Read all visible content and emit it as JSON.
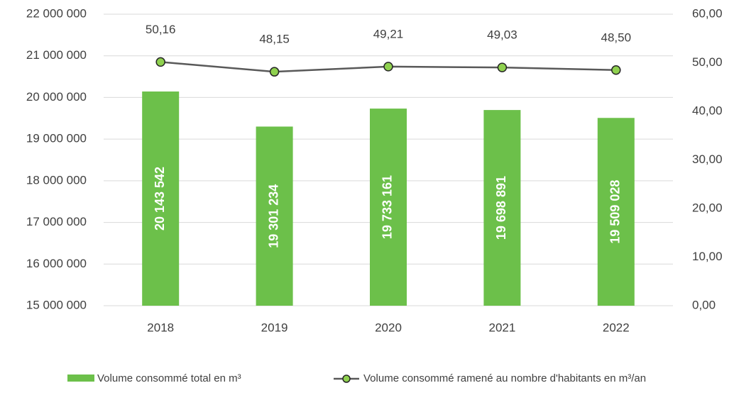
{
  "chart_data": {
    "type": "bar",
    "categories": [
      "2018",
      "2019",
      "2020",
      "2021",
      "2022"
    ],
    "series": [
      {
        "name": "Volume consommé total en m³",
        "type": "bar",
        "color": "#6cc04a",
        "values": [
          20143542,
          19301234,
          19733161,
          19698891,
          19509028
        ],
        "value_labels": [
          "20 143 542",
          "19 301 234",
          "19 733 161",
          "19 698 891",
          "19 509 028"
        ]
      },
      {
        "name": "Volume consommé ramené au nombre d'habitants en m³/an",
        "type": "line",
        "axis": "y2",
        "color": "#595959",
        "marker_color": "#8fd14f",
        "values": [
          50.16,
          48.15,
          49.21,
          49.03,
          48.5
        ],
        "value_labels": [
          "50,16",
          "48,15",
          "49,21",
          "49,03",
          "48,50"
        ]
      }
    ],
    "ylim": [
      15000000,
      22000000
    ],
    "yticks": [
      {
        "value": 15000000,
        "label": "15 000 000"
      },
      {
        "value": 16000000,
        "label": "16 000 000"
      },
      {
        "value": 17000000,
        "label": "17 000 000"
      },
      {
        "value": 18000000,
        "label": "18 000 000"
      },
      {
        "value": 19000000,
        "label": "19 000 000"
      },
      {
        "value": 20000000,
        "label": "20 000 000"
      },
      {
        "value": 21000000,
        "label": "21 000 000"
      },
      {
        "value": 22000000,
        "label": "22 000 000"
      }
    ],
    "y2lim": [
      0,
      60
    ],
    "y2ticks": [
      {
        "value": 0,
        "label": "0,00"
      },
      {
        "value": 10,
        "label": "10,00"
      },
      {
        "value": 20,
        "label": "20,00"
      },
      {
        "value": 30,
        "label": "30,00"
      },
      {
        "value": 40,
        "label": "40,00"
      },
      {
        "value": 50,
        "label": "50,00"
      },
      {
        "value": 60,
        "label": "60,00"
      }
    ],
    "grid": true
  }
}
